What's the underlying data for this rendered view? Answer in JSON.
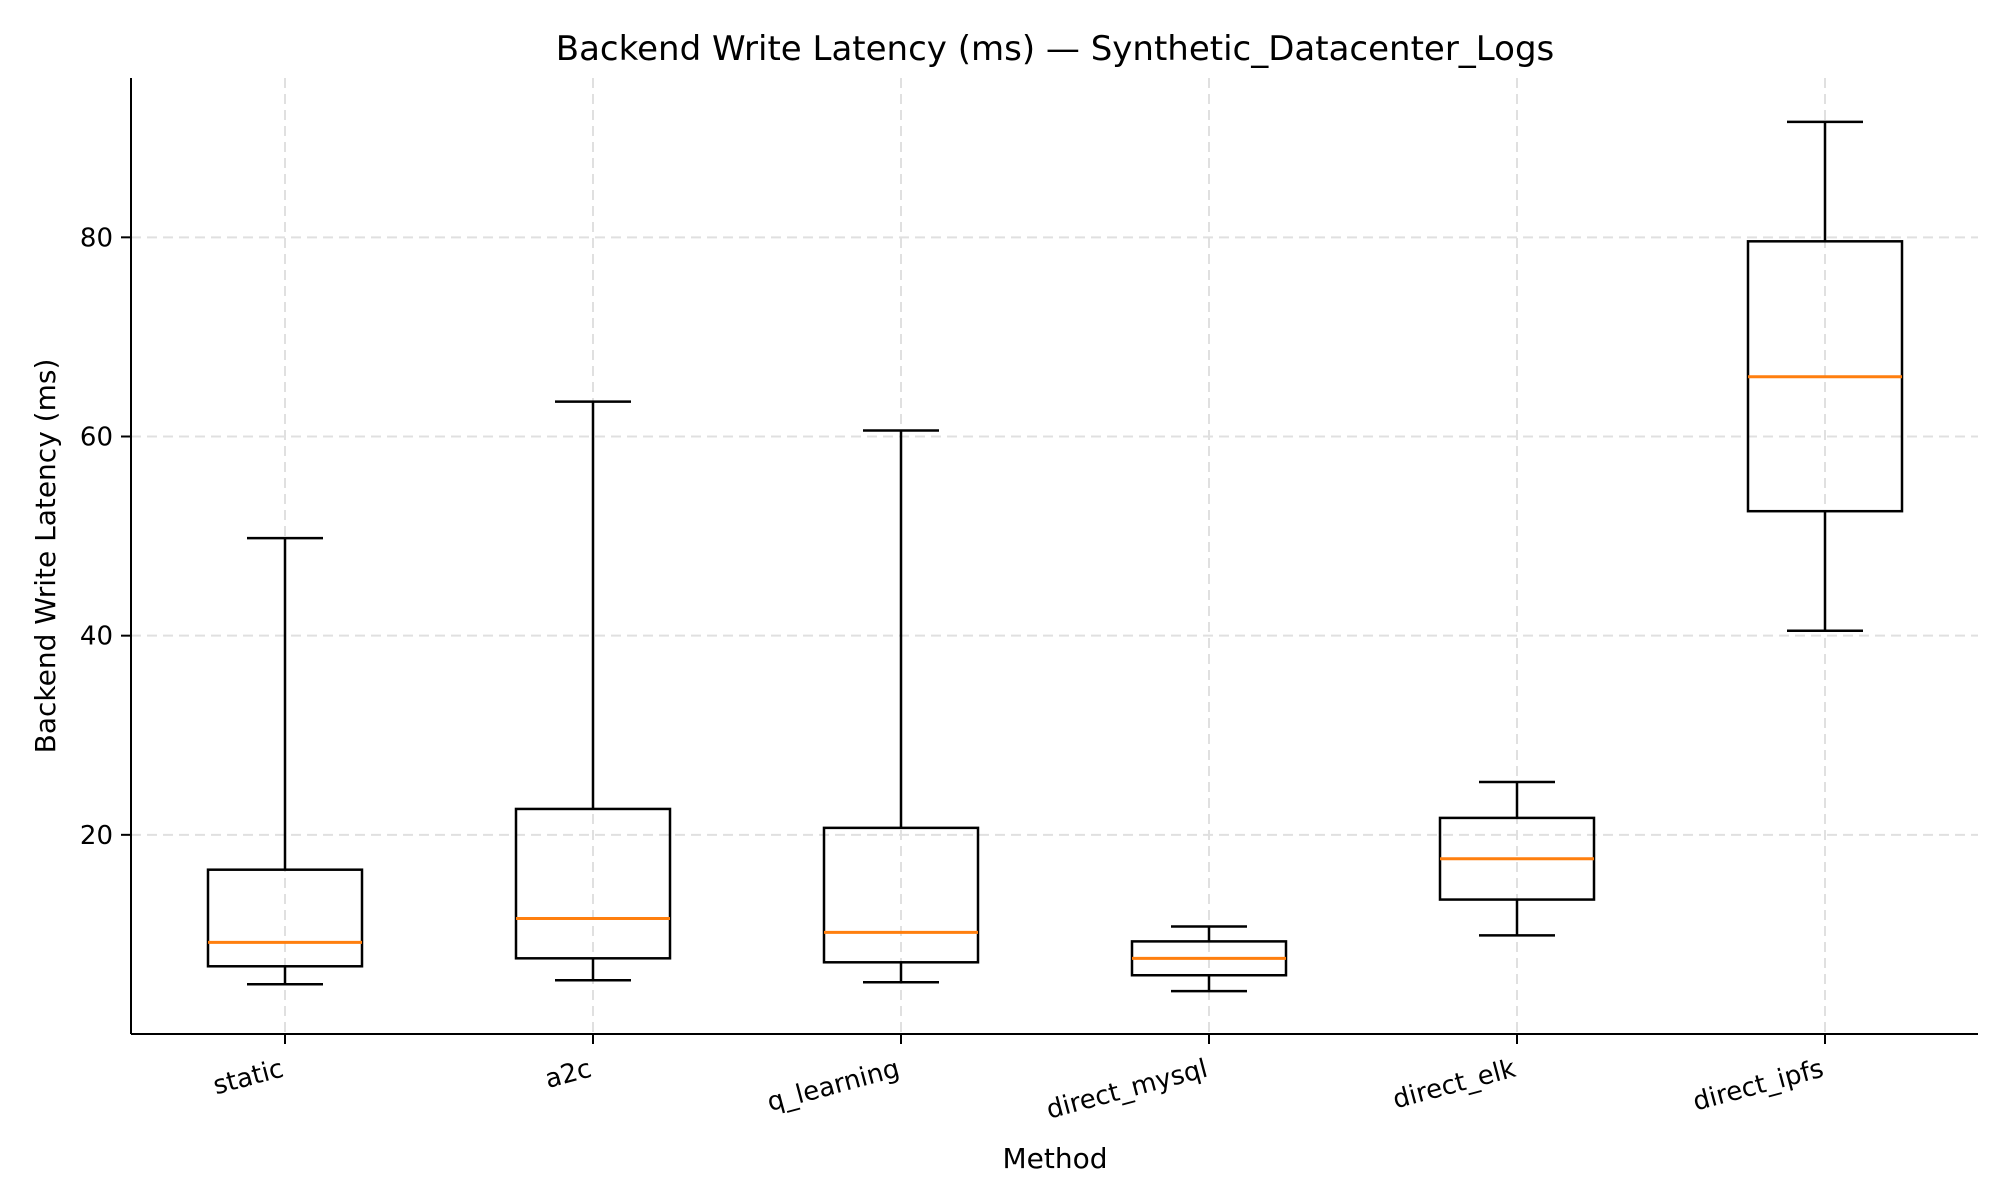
{
  "colors": {
    "median": "#ff7f0e",
    "box": "#000000",
    "grid": "#e0e0e0"
  },
  "chart_data": {
    "type": "boxplot",
    "title": "Backend Write Latency (ms) — Synthetic_Datacenter_Logs",
    "xlabel": "Method",
    "ylabel": "Backend Write Latency (ms)",
    "ylim": [
      0,
      96
    ],
    "yticks": [
      20,
      40,
      60,
      80
    ],
    "grid": true,
    "categories": [
      "static",
      "a2c",
      "q_learning",
      "direct_mysql",
      "direct_elk",
      "direct_ipfs"
    ],
    "boxes": [
      {
        "name": "static",
        "whisker_low": 5.0,
        "q1": 6.8,
        "median": 9.2,
        "q3": 16.5,
        "whisker_high": 49.8
      },
      {
        "name": "a2c",
        "whisker_low": 5.4,
        "q1": 7.6,
        "median": 11.6,
        "q3": 22.6,
        "whisker_high": 63.5
      },
      {
        "name": "q_learning",
        "whisker_low": 5.2,
        "q1": 7.2,
        "median": 10.2,
        "q3": 20.7,
        "whisker_high": 60.6
      },
      {
        "name": "direct_mysql",
        "whisker_low": 4.3,
        "q1": 5.9,
        "median": 7.6,
        "q3": 9.3,
        "whisker_high": 10.8
      },
      {
        "name": "direct_elk",
        "whisker_low": 9.9,
        "q1": 13.5,
        "median": 17.6,
        "q3": 21.7,
        "whisker_high": 25.3
      },
      {
        "name": "direct_ipfs",
        "whisker_low": 40.5,
        "q1": 52.5,
        "median": 66.0,
        "q3": 79.6,
        "whisker_high": 91.6
      }
    ]
  }
}
